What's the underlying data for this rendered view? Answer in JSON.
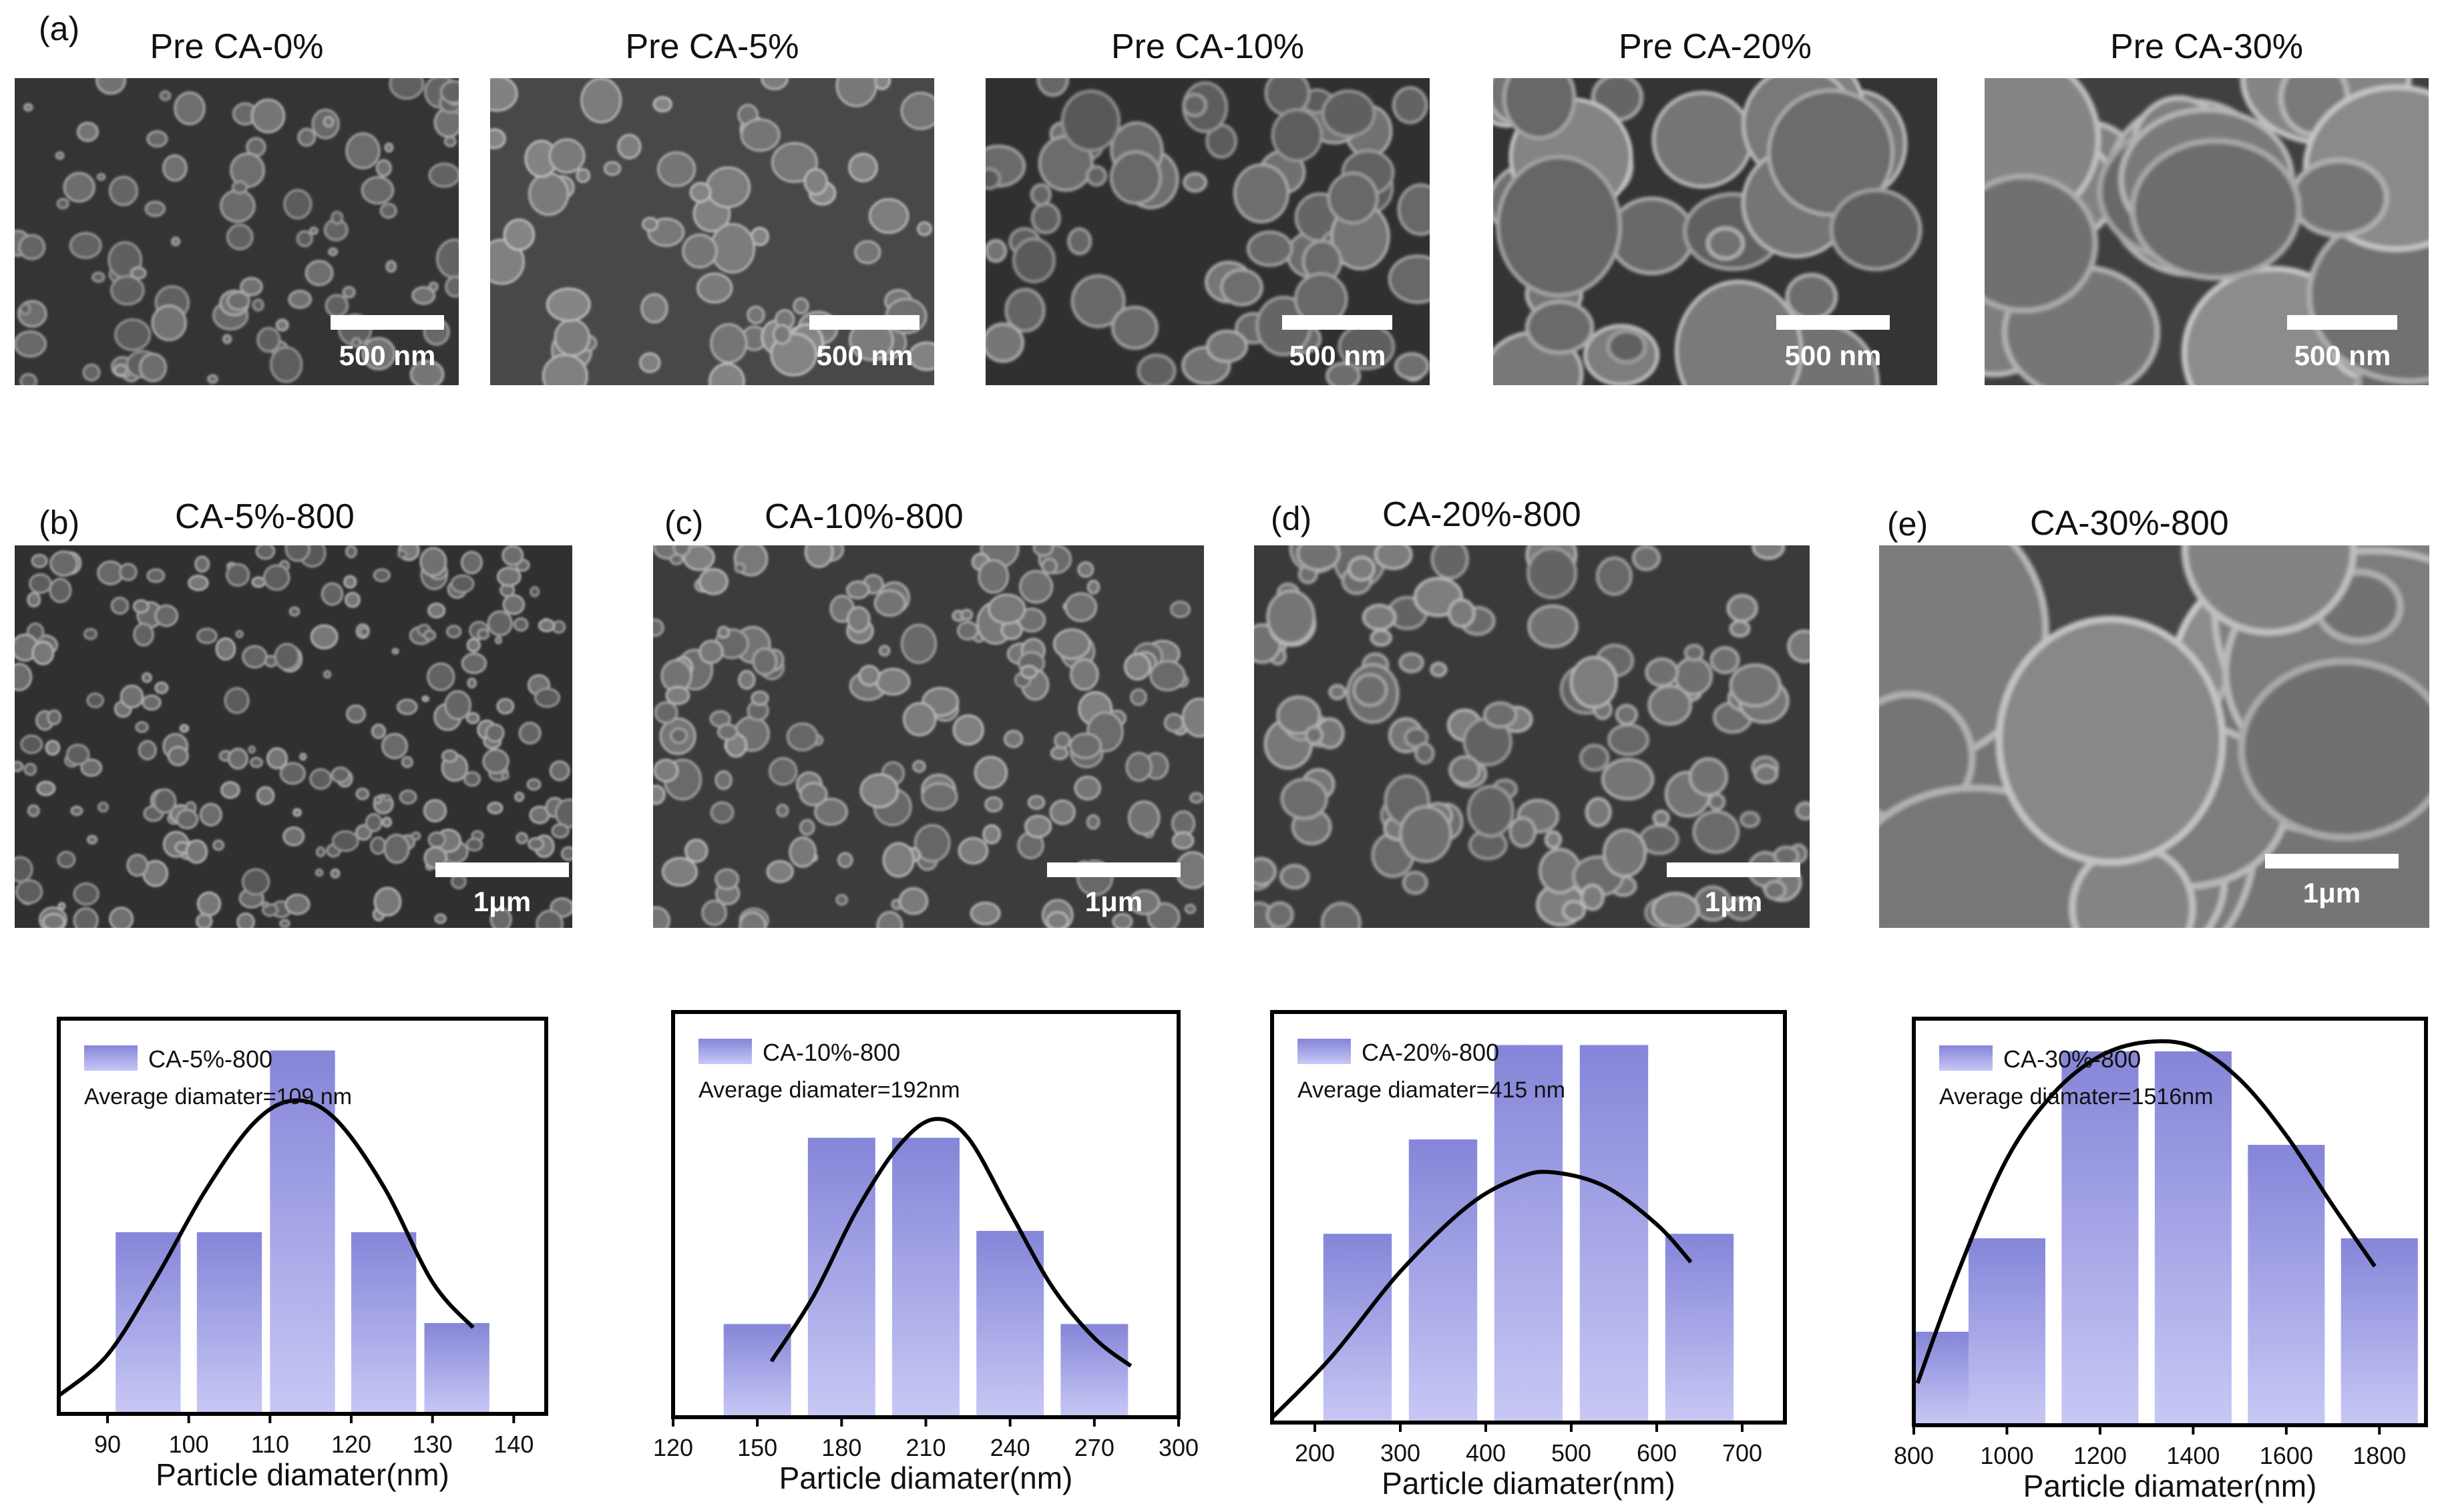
{
  "row_a": {
    "label": "(a)",
    "panels": [
      {
        "title": "Pre CA-0%",
        "scale": "500 nm"
      },
      {
        "title": "Pre CA-5%",
        "scale": "500 nm"
      },
      {
        "title": "Pre CA-10%",
        "scale": "500 nm"
      },
      {
        "title": "Pre CA-20%",
        "scale": "500 nm"
      },
      {
        "title": "Pre CA-30%",
        "scale": "500 nm"
      }
    ]
  },
  "row_b": {
    "panels": [
      {
        "label": "(b)",
        "title": "CA-5%-800",
        "scale": "1μm"
      },
      {
        "label": "(c)",
        "title": "CA-10%-800",
        "scale": "1μm"
      },
      {
        "label": "(d)",
        "title": "CA-20%-800",
        "scale": "1μm"
      },
      {
        "label": "(e)",
        "title": "CA-30%-800",
        "scale": "1μm"
      }
    ]
  },
  "colors": {
    "bar_top": "#8585d9",
    "bar_bottom": "#c8c8f5",
    "curve": "#000000"
  },
  "chart_data": [
    {
      "type": "bar",
      "legend": "CA-5%-800",
      "annotation": "Average diamater=109 nm",
      "xlabel": "Particle diamater(nm)",
      "xlim": [
        84,
        144
      ],
      "ylim": [
        0,
        4.35
      ],
      "xticks": [
        90,
        100,
        110,
        120,
        130,
        140
      ],
      "bin_width": 8,
      "bins": [
        {
          "x": 95,
          "count": 2
        },
        {
          "x": 105,
          "count": 2
        },
        {
          "x": 114,
          "count": 4
        },
        {
          "x": 124,
          "count": 2
        },
        {
          "x": 133,
          "count": 1
        }
      ],
      "curve": [
        [
          84,
          0.2
        ],
        [
          90,
          0.65
        ],
        [
          96,
          1.5
        ],
        [
          102,
          2.45
        ],
        [
          108,
          3.2
        ],
        [
          113,
          3.45
        ],
        [
          118,
          3.25
        ],
        [
          124,
          2.5
        ],
        [
          130,
          1.45
        ],
        [
          135,
          0.95
        ]
      ]
    },
    {
      "type": "bar",
      "legend": "CA-10%-800",
      "annotation": "Average diamater=192nm",
      "xlabel": "Particle diamater(nm)",
      "xlim": [
        120,
        300
      ],
      "ylim": [
        0,
        4.35
      ],
      "xticks": [
        120,
        150,
        180,
        210,
        240,
        270,
        300
      ],
      "bin_width": 24,
      "bins": [
        {
          "x": 150,
          "count": 1
        },
        {
          "x": 180,
          "count": 3
        },
        {
          "x": 210,
          "count": 3
        },
        {
          "x": 240,
          "count": 2
        },
        {
          "x": 270,
          "count": 1
        }
      ],
      "curve": [
        [
          155,
          0.6
        ],
        [
          170,
          1.3
        ],
        [
          185,
          2.2
        ],
        [
          200,
          2.9
        ],
        [
          213,
          3.2
        ],
        [
          225,
          3.0
        ],
        [
          240,
          2.2
        ],
        [
          255,
          1.4
        ],
        [
          270,
          0.85
        ],
        [
          283,
          0.55
        ]
      ]
    },
    {
      "type": "bar",
      "legend": "CA-20%-800",
      "annotation": "Average diamater=415 nm",
      "xlabel": "Particle diamater(nm)",
      "xlim": [
        150,
        750
      ],
      "ylim": [
        0,
        4.35
      ],
      "xticks": [
        200,
        300,
        400,
        500,
        600,
        700
      ],
      "bin_width": 80,
      "bins": [
        {
          "x": 250,
          "count": 2
        },
        {
          "x": 350,
          "count": 3
        },
        {
          "x": 450,
          "count": 4
        },
        {
          "x": 550,
          "count": 4
        },
        {
          "x": 650,
          "count": 2
        }
      ],
      "curve": [
        [
          150,
          0.05
        ],
        [
          220,
          0.7
        ],
        [
          300,
          1.6
        ],
        [
          380,
          2.3
        ],
        [
          440,
          2.6
        ],
        [
          480,
          2.65
        ],
        [
          540,
          2.5
        ],
        [
          600,
          2.1
        ],
        [
          640,
          1.7
        ]
      ]
    },
    {
      "type": "bar",
      "legend": "CA-30%-800",
      "annotation": "Average diamater=1516nm",
      "xlabel": "Particle diamater(nm)",
      "xlim": [
        800,
        1900
      ],
      "ylim": [
        0,
        4.35
      ],
      "xticks": [
        800,
        1000,
        1200,
        1400,
        1600,
        1800
      ],
      "bin_width": 165,
      "bins": [
        {
          "x": 850,
          "count": 1
        },
        {
          "x": 1000,
          "count": 2
        },
        {
          "x": 1200,
          "count": 4
        },
        {
          "x": 1400,
          "count": 4
        },
        {
          "x": 1600,
          "count": 3
        },
        {
          "x": 1800,
          "count": 2
        }
      ],
      "curve": [
        [
          808,
          0.45
        ],
        [
          900,
          1.7
        ],
        [
          1000,
          2.85
        ],
        [
          1100,
          3.55
        ],
        [
          1200,
          3.95
        ],
        [
          1300,
          4.1
        ],
        [
          1400,
          4.05
        ],
        [
          1500,
          3.7
        ],
        [
          1600,
          3.1
        ],
        [
          1700,
          2.35
        ],
        [
          1790,
          1.7
        ]
      ]
    }
  ]
}
